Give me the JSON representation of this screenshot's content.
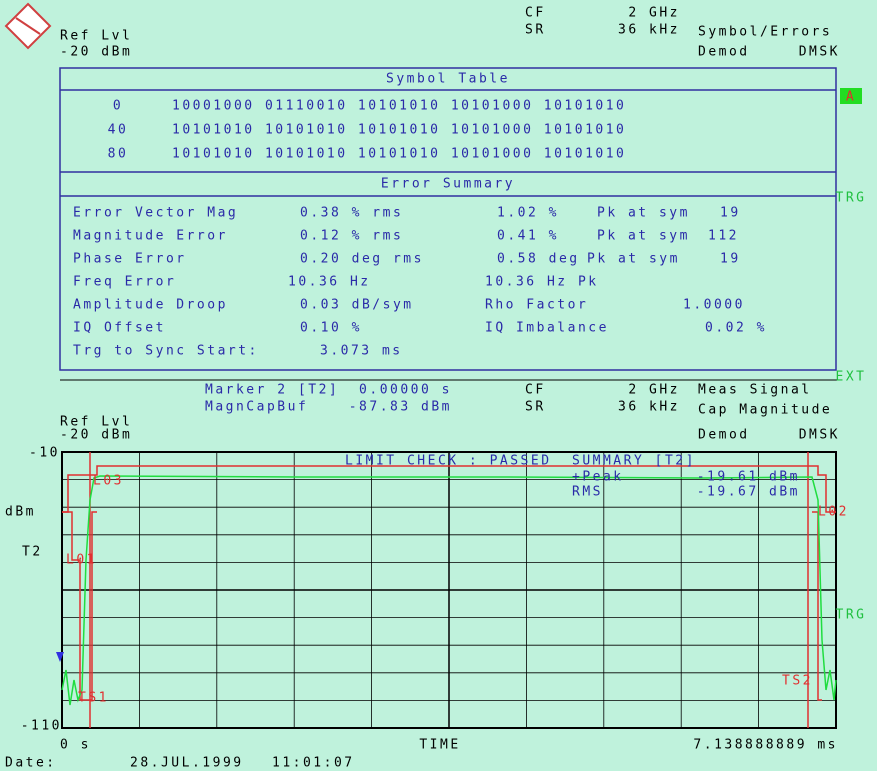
{
  "header": {
    "ref_level_label": "Ref Lvl",
    "ref_level": "-20 dBm",
    "cf_label": "CF",
    "cf": "2 GHz",
    "sr_label": "SR",
    "sr": "36 kHz",
    "mode": "Symbol/Errors",
    "demod_label": "Demod",
    "demod": "DMSK"
  },
  "symbol_table": {
    "title": "Symbol Table",
    "rows": [
      {
        "index": "0",
        "bits": "10001000 01110010 10101010 10101000 10101010"
      },
      {
        "index": "40",
        "bits": "10101010 10101010 10101010 10101000 10101010"
      },
      {
        "index": "80",
        "bits": "10101010 10101010 10101010 10101000 10101010"
      }
    ]
  },
  "error_summary": {
    "title": "Error Summary",
    "rows": [
      [
        "Error Vector Mag",
        "0.38 % rms",
        "1.02 %",
        "Pk at sym",
        "19"
      ],
      [
        "Magnitude Error",
        "0.12 % rms",
        "0.41 %",
        "Pk at sym",
        "112"
      ],
      [
        "Phase Error",
        "0.20 deg rms",
        "0.58 deg",
        "Pk at sym",
        "19"
      ],
      [
        "Freq Error",
        "10.36 Hz",
        "10.36 Hz Pk"
      ],
      [
        "Amplitude Droop",
        "0.03 dB/sym",
        "Rho Factor",
        "1.0000"
      ],
      [
        "IQ Offset",
        "0.10 %",
        "IQ Imbalance",
        "0.02 %"
      ],
      [
        "Trg to Sync Start:",
        "3.073 ms"
      ]
    ]
  },
  "side_labels": [
    "A",
    "TRG",
    "EXT",
    "TRG"
  ],
  "trace_header": {
    "marker": "Marker 2 [T2]",
    "buffer": "MagnCapBuf",
    "marker_time": "0.00000 s",
    "marker_level": "-87.83 dBm",
    "cf_label": "CF",
    "cf": "2 GHz",
    "sr_label": "SR",
    "sr": "36 kHz",
    "measurement": "Meas Signal",
    "display": "Cap Magnitude",
    "ref_level_label": "Ref Lvl",
    "ref_level": "-20 dBm",
    "demod_label": "Demod",
    "demod": "DMSK"
  },
  "plot": {
    "y_top": "-10",
    "y_bottom": "-110",
    "unit": "dBm",
    "trace": "T2",
    "limit_check": "LIMIT CHECK : PASSED",
    "summary": "SUMMARY [T2]",
    "peak_label": "+Peak",
    "peak": "-19.61 dBm",
    "rms_label": "RMS",
    "rms": "-19.67 dBm",
    "limit_lines": [
      "L03",
      "L01",
      "L02"
    ],
    "time_lines": [
      "TS1",
      "TS2"
    ],
    "x_start": "0 s",
    "x_label": "TIME",
    "x_end": "7.138888889 ms"
  },
  "footer": {
    "date_label": "Date:",
    "date": "28.JUL.1999",
    "time": "11:01:07"
  }
}
